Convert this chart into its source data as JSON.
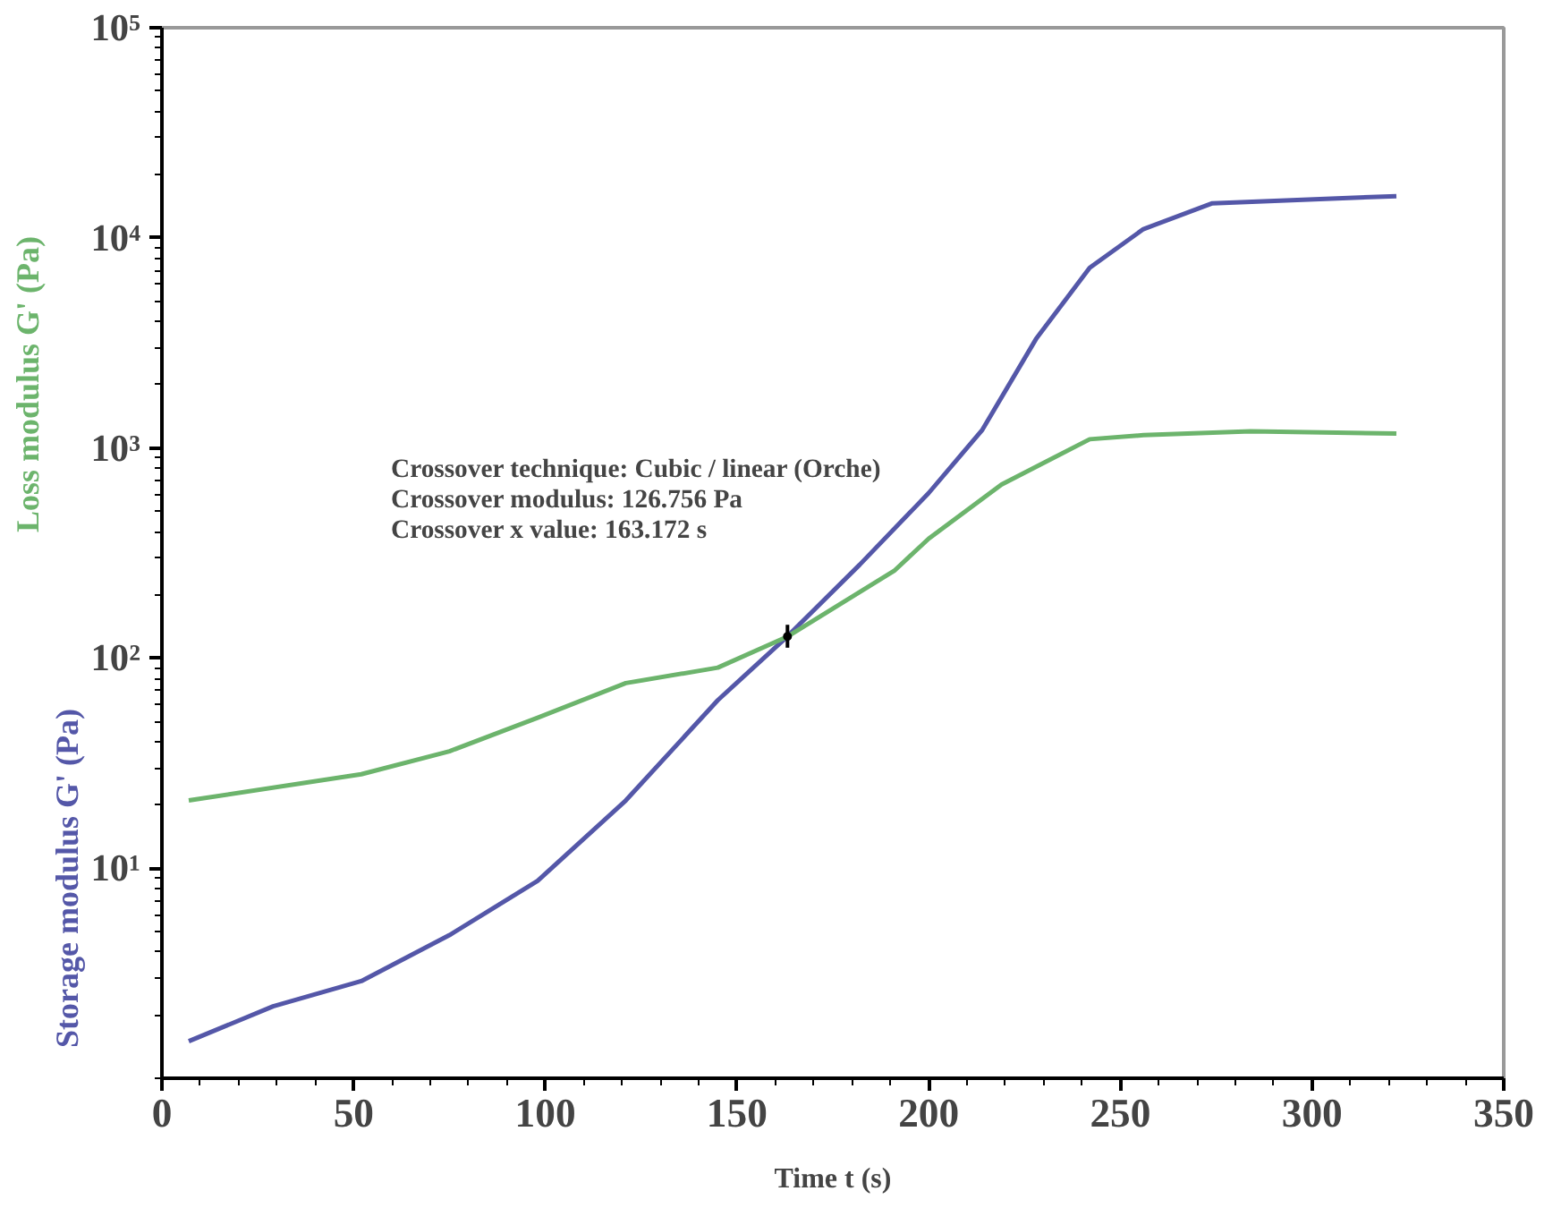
{
  "chart_data": {
    "type": "line",
    "xlabel": "Time t (s)",
    "log": "y",
    "xlim": [
      0,
      350
    ],
    "ylim": [
      1,
      100000
    ],
    "xticks": [
      0,
      50,
      100,
      150,
      200,
      250,
      300,
      350
    ],
    "yticks": [
      {
        "value": 10,
        "label": "10¹"
      },
      {
        "value": 100,
        "label": "10²"
      },
      {
        "value": 1000,
        "label": "10³"
      },
      {
        "value": 10000,
        "label": "10⁴"
      },
      {
        "value": 100000,
        "label": "10⁵"
      }
    ],
    "grid": false,
    "marker": "none",
    "line_style": "solid",
    "series": [
      {
        "name": "Storage modulus  G' (Pa)",
        "color": "#5457a8",
        "x": [
          7,
          29,
          52,
          75,
          98,
          121,
          145,
          163,
          182,
          200,
          214,
          228,
          242,
          256,
          274,
          322
        ],
        "values": [
          1.5,
          2.2,
          2.9,
          4.8,
          8.7,
          21,
          63,
          126,
          278,
          610,
          1220,
          3300,
          7200,
          11000,
          14600,
          15800
        ]
      },
      {
        "name": "Loss modulus  G' (Pa)",
        "color": "#6cb46c",
        "x": [
          7,
          52,
          75,
          98,
          121,
          145,
          163,
          191,
          200,
          219,
          242,
          256,
          284,
          322
        ],
        "values": [
          21,
          28,
          36,
          52,
          76,
          90,
          126,
          260,
          370,
          670,
          1100,
          1150,
          1200,
          1170
        ]
      },
      {
        "type": "scatter",
        "marker": "circle",
        "color": "#000000",
        "x": [
          163.172
        ],
        "values": [
          126.756
        ],
        "errors": [
          [
            112,
            144
          ]
        ]
      }
    ],
    "annotations": [
      "Crossover technique: Cubic / linear (Orche)",
      "Crossover modulus:  126.756 Pa",
      "Crossover x value: 163.172 s"
    ]
  }
}
